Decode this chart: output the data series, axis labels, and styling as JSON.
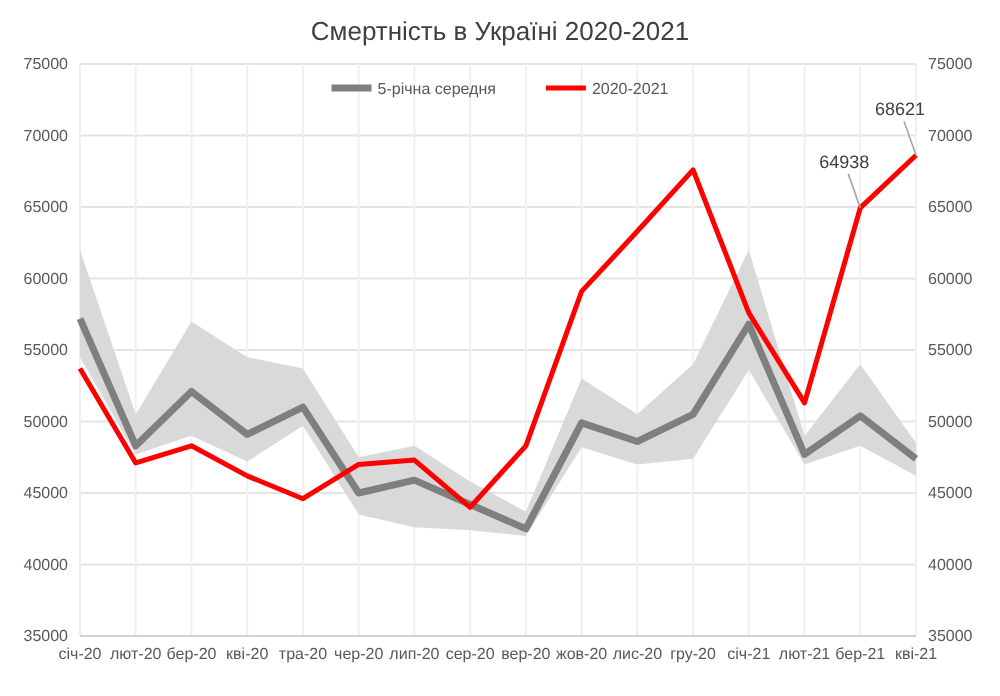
{
  "chart_data": {
    "type": "line",
    "title": "Смертність в Україні 2020-2021",
    "categories": [
      "січ-20",
      "лют-20",
      "бер-20",
      "кві-20",
      "тра-20",
      "чер-20",
      "лип-20",
      "сер-20",
      "вер-20",
      "жов-20",
      "лис-20",
      "гру-20",
      "січ-21",
      "лют-21",
      "бер-21",
      "кві-21"
    ],
    "series": [
      {
        "name": "5-річна середня",
        "color": "#7f7f7f",
        "values": [
          57200,
          48300,
          52100,
          49100,
          51000,
          45000,
          45900,
          44200,
          42500,
          49900,
          48600,
          50500,
          56800,
          47700,
          50400,
          47400
        ],
        "lower": [
          54500,
          47700,
          49000,
          47200,
          49700,
          43500,
          42600,
          42400,
          42000,
          48200,
          47000,
          47400,
          53600,
          47000,
          48300,
          46200
        ],
        "upper": [
          62000,
          50500,
          57000,
          54500,
          53700,
          47500,
          48300,
          45800,
          43700,
          53000,
          50500,
          54000,
          62000,
          49000,
          54000,
          48500
        ]
      },
      {
        "name": "2020-2021",
        "color": "#ff0000",
        "values": [
          53700,
          47100,
          48300,
          46200,
          44600,
          47000,
          47300,
          44000,
          48300,
          59100,
          63300,
          67600,
          57600,
          51300,
          64938,
          68621
        ]
      }
    ],
    "ylim": [
      35000,
      75000
    ],
    "yticks": [
      35000,
      40000,
      45000,
      50000,
      55000,
      60000,
      65000,
      70000,
      75000
    ],
    "y2lim": [
      35000,
      75000
    ],
    "y2ticks": [
      35000,
      40000,
      45000,
      50000,
      55000,
      60000,
      65000,
      70000,
      75000
    ],
    "annotations": [
      {
        "text": "64938",
        "x": "бер-21",
        "y": 64938
      },
      {
        "text": "68621",
        "x": "кві-21",
        "y": 68621
      }
    ],
    "grid": true,
    "legend": "top",
    "marker": "none",
    "line_style": "solid"
  }
}
